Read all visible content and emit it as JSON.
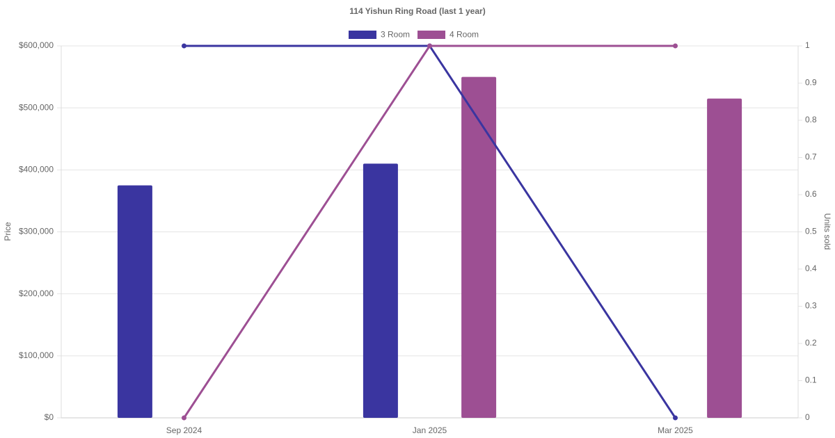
{
  "chart_data": {
    "type": "bar-line",
    "title": "114 Yishun Ring Road (last 1 year)",
    "categories": [
      "Sep 2024",
      "Jan 2025",
      "Mar 2025"
    ],
    "series": [
      {
        "name": "3 Room",
        "color": "#3a35a0",
        "values": [
          375000,
          410000,
          null
        ],
        "units": [
          1,
          1,
          0
        ]
      },
      {
        "name": "4 Room",
        "color": "#9d4f93",
        "values": [
          null,
          550000,
          515000
        ],
        "units": [
          0,
          1,
          1
        ]
      }
    ],
    "y_label": "Price",
    "y2_label": "Units sold",
    "ylim": [
      0,
      600000
    ],
    "yticks": [
      {
        "value": 0,
        "label": "$0"
      },
      {
        "value": 100000,
        "label": "$100,000"
      },
      {
        "value": 200000,
        "label": "$200,000"
      },
      {
        "value": 300000,
        "label": "$300,000"
      },
      {
        "value": 400000,
        "label": "$400,000"
      },
      {
        "value": 500000,
        "label": "$500,000"
      },
      {
        "value": 600000,
        "label": "$600,000"
      }
    ],
    "y2lim": [
      0,
      1
    ],
    "y2ticks": [
      0,
      0.1,
      0.2,
      0.3,
      0.4,
      0.5,
      0.6,
      0.7,
      0.8,
      0.9,
      1
    ],
    "grid": true,
    "legend": "top"
  }
}
